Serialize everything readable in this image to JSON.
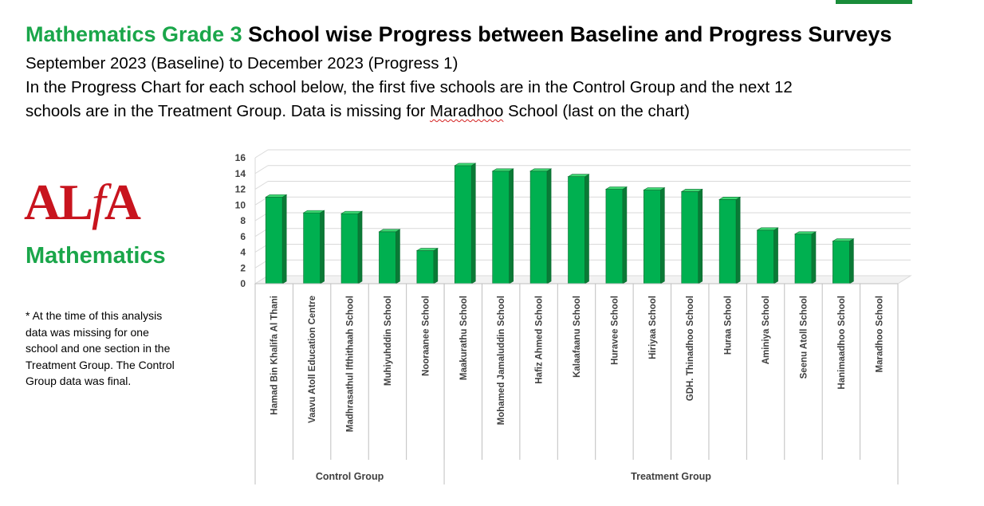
{
  "title": {
    "subject": "Mathematics Grade 3",
    "rest": "School wise Progress between Baseline and Progress Surveys"
  },
  "subtitle_line1": "September 2023 (Baseline) to December 2023 (Progress 1)",
  "subtitle_line2": "In the Progress Chart for each school below, the first five schools are in the Control Group and the next 12",
  "subtitle_line3_pre": "schools are in the Treatment Group. Data is missing for ",
  "subtitle_line3_link": "Maradhoo",
  "subtitle_line3_post": " School (last on the chart)",
  "logo": {
    "text_a": "AL",
    "text_f": "f",
    "text_b": "A",
    "subtitle": "Mathematics"
  },
  "footnote": "* At the time of this analysis data was missing for one school and one section in the Treatment Group. The Control Group data was final.",
  "colors": {
    "bar": "#00b050",
    "bar_side": "#0a7a36",
    "bar_top": "#3ed873",
    "accent_green": "#1aa64a",
    "logo_red": "#c8141e"
  },
  "chart_data": {
    "type": "bar",
    "title": "",
    "xlabel": "",
    "ylabel": "",
    "ylim": [
      0,
      16
    ],
    "yticks": [
      "0",
      "2",
      "4",
      "6",
      "8",
      "10",
      "12",
      "14",
      "16"
    ],
    "grid": true,
    "legend": "none",
    "categories": [
      "Hamad Bin Khalifa Al Thani",
      "Vaavu Atoll Education Centre",
      "Madhrasathul Ifthithaah School",
      "Muhiyuhddin School",
      "Nooraanee School",
      "Maakurathu School",
      "Mohamed Jamaluddin School",
      "Hafiz Ahmed School",
      "Kalaafaanu School",
      "Huravee School",
      "Hiriyaa School",
      "GDH. Thinadhoo School",
      "Huraa School",
      "Aminiya School",
      "Seenu Atoll School",
      "Hanimaadhoo School",
      "Maradhoo School"
    ],
    "values": [
      11.0,
      9.0,
      8.9,
      6.6,
      4.2,
      15.0,
      14.3,
      14.3,
      13.6,
      12.0,
      11.9,
      11.7,
      10.7,
      6.8,
      6.3,
      5.4,
      null
    ],
    "groups": [
      {
        "label": "Control Group",
        "count": 5
      },
      {
        "label": "Treatment Group",
        "count": 12
      }
    ]
  }
}
